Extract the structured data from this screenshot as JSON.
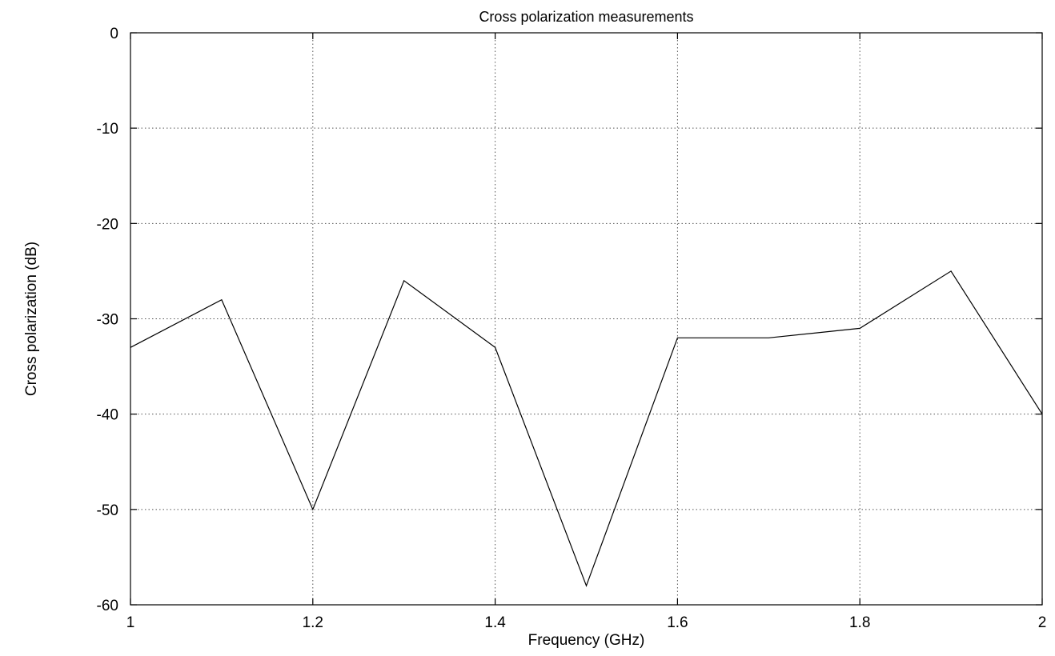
{
  "chart_data": {
    "type": "line",
    "title": "Cross polarization measurements",
    "xlabel": "Frequency (GHz)",
    "ylabel": "Cross polarization (dB)",
    "xlim": [
      1,
      2
    ],
    "ylim": [
      -60,
      0
    ],
    "grid": true,
    "x_ticks": [
      1,
      1.2,
      1.4,
      1.6,
      1.8,
      2
    ],
    "x_tick_labels": [
      "1",
      "1.2",
      "1.4",
      "1.6",
      "1.8",
      "2"
    ],
    "y_ticks": [
      0,
      -10,
      -20,
      -30,
      -40,
      -50,
      -60
    ],
    "y_tick_labels": [
      "0",
      "-10",
      "-20",
      "-30",
      "-40",
      "-50",
      "-60"
    ],
    "series": [
      {
        "x": [
          1.0,
          1.1,
          1.2,
          1.3,
          1.4,
          1.5,
          1.6,
          1.7,
          1.8,
          1.9,
          2.0
        ],
        "values": [
          -33,
          -28,
          -50,
          -26,
          -33,
          -58,
          -32,
          -32,
          -31,
          -25,
          -40
        ],
        "color": "#000000"
      }
    ]
  }
}
